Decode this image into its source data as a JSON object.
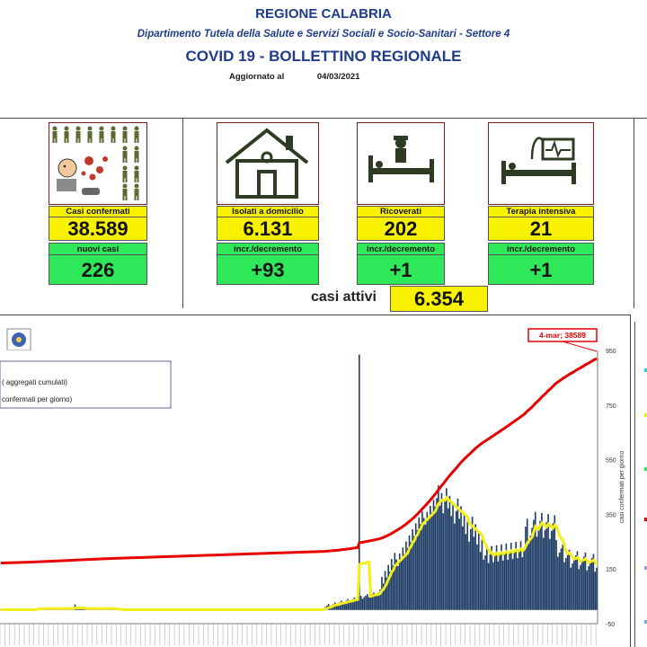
{
  "header": {
    "region": "REGIONE CALABRIA",
    "department": "Dipartimento Tutela della Salute e Servizi Sociali e Socio-Sanitari - Settore 4",
    "title": "COVID 19 - BOLLETTINO REGIONALE",
    "updated_label": "Aggiornato al",
    "updated_date": "04/03/2021"
  },
  "stats": {
    "confermati": {
      "label": "Casi confermati",
      "value": "38.589",
      "sub_label": "nuovi casi",
      "sub_value": "226"
    },
    "isolati": {
      "label": "Isolati a domicilio",
      "value": "6.131",
      "sub_label": "incr./decremento",
      "sub_value": "+93"
    },
    "ricoverati": {
      "label": "Ricoverati",
      "value": "202",
      "sub_label": "incr./decremento",
      "sub_value": "+1"
    },
    "terapia": {
      "label": "Terapia intensiva",
      "value": "21",
      "sub_label": "incr./decremento",
      "sub_value": "+1"
    },
    "attivi": {
      "label": "casi attivi",
      "value": "6.354"
    }
  },
  "chart_data": {
    "type": "bar",
    "legend": {
      "placement": "top-left",
      "entries": [
        "( aggregati cumulati)",
        "confermati per giorno)"
      ]
    },
    "annotation": "4-mar; 38589",
    "y2label": "casi confermati per giorno",
    "y2ticks": [
      "950",
      "750",
      "550",
      "350",
      "150",
      "-50"
    ],
    "y2lim": [
      -50,
      950
    ],
    "ylim_cumulative": [
      0,
      39500
    ],
    "series": [
      {
        "kind": "bars",
        "color": "#1f3d66",
        "values": [
          0,
          0,
          0,
          0,
          0,
          0,
          0,
          0,
          0,
          0,
          0,
          0,
          0,
          0,
          0,
          0,
          0,
          0,
          0,
          0,
          0,
          0,
          0,
          0,
          0,
          0,
          0,
          0,
          0,
          0,
          0,
          0,
          0,
          0,
          0,
          0,
          0,
          0,
          0,
          0,
          0,
          0,
          0,
          0,
          0,
          0,
          0,
          0,
          0,
          0,
          0,
          0,
          0,
          0,
          0,
          0,
          0,
          0,
          0,
          0,
          0,
          0,
          0,
          0,
          0,
          0,
          0,
          0,
          0,
          0,
          0,
          0,
          0,
          0,
          0,
          0,
          0,
          0,
          0,
          0,
          0,
          0,
          0,
          0,
          0,
          0,
          0,
          0,
          0,
          0,
          0,
          0,
          0,
          0,
          0,
          0,
          0,
          0,
          0,
          0,
          0,
          0,
          0,
          0,
          0,
          0,
          0,
          0,
          0,
          0,
          0,
          0,
          0,
          0,
          0,
          0,
          0,
          0,
          0,
          0,
          0,
          0,
          0,
          0,
          0,
          0,
          0,
          0,
          0,
          0,
          0,
          0,
          0,
          0,
          0,
          0,
          0,
          0,
          0,
          0,
          0,
          0,
          0,
          0,
          0,
          0,
          0,
          0,
          0,
          0,
          0,
          0,
          0,
          0,
          0,
          0,
          0,
          0,
          0,
          0,
          0,
          0,
          0,
          0,
          0,
          0,
          0,
          0,
          0,
          0,
          0,
          0,
          0,
          0,
          0,
          0,
          0,
          0,
          0,
          0,
          0,
          0,
          0,
          0,
          0,
          0,
          0,
          0,
          0,
          0,
          0,
          0,
          0,
          0,
          0,
          0,
          0,
          0,
          0,
          0,
          0,
          0,
          0,
          0,
          0,
          0,
          0,
          0,
          0,
          0,
          0,
          0,
          0,
          0,
          0,
          0,
          0,
          0,
          0,
          0,
          0,
          0,
          0,
          0,
          0,
          0,
          0,
          0,
          0,
          0,
          0,
          0,
          0,
          0,
          0,
          0,
          0,
          0,
          0,
          0,
          0,
          0,
          0,
          0,
          0,
          0,
          0,
          0,
          0,
          0,
          0,
          0,
          0,
          0,
          0,
          0,
          0,
          0,
          0,
          0,
          0,
          0,
          0,
          0,
          0,
          0,
          0,
          0,
          0,
          0,
          0,
          0,
          0,
          0,
          0,
          0,
          0,
          0,
          0,
          0,
          0,
          0,
          0,
          0,
          0,
          0,
          0,
          0,
          0,
          0,
          0,
          0,
          0,
          0,
          0,
          0,
          0,
          0,
          0,
          0,
          0,
          0,
          0,
          0,
          0,
          0,
          0,
          0,
          0,
          0,
          0,
          0,
          0,
          0,
          0,
          0,
          0,
          0,
          0,
          0,
          0,
          0,
          0,
          0,
          0,
          0,
          0,
          0,
          0,
          0,
          0,
          0,
          0,
          0,
          0,
          0,
          0,
          0,
          0,
          0,
          0,
          0,
          0,
          0,
          0,
          0,
          0,
          0,
          0,
          0,
          0,
          0,
          0,
          0,
          0,
          0,
          0,
          0,
          0,
          0,
          0,
          0,
          0,
          0,
          0,
          0,
          0,
          0,
          0,
          0,
          0,
          0,
          0,
          0,
          0,
          0,
          0,
          0,
          0,
          0,
          0,
          0,
          0,
          0,
          0,
          0,
          0,
          0,
          0,
          0,
          0,
          0,
          0,
          0,
          0,
          0,
          0,
          0,
          0,
          0,
          0,
          0,
          0,
          0,
          0,
          0,
          0,
          0,
          0,
          0,
          0,
          0,
          0,
          0,
          0,
          0,
          0,
          0,
          0,
          0,
          0,
          0,
          0,
          0,
          0,
          0,
          0,
          0,
          0,
          0,
          0,
          0,
          0,
          0,
          0,
          0,
          0,
          0,
          0,
          0,
          0,
          0,
          0,
          0,
          0,
          0,
          0,
          0,
          0,
          0,
          0,
          0,
          0,
          0,
          0,
          0,
          0,
          0,
          0,
          0,
          0,
          0,
          0,
          0,
          0,
          0,
          0,
          0,
          0,
          0,
          0,
          0,
          0,
          0,
          0,
          0,
          0,
          0,
          0,
          0
        ]
      },
      {
        "kind": "line",
        "color": "#f2ee1a",
        "values": []
      },
      {
        "kind": "line",
        "color": "#e60000",
        "values": []
      }
    ]
  }
}
